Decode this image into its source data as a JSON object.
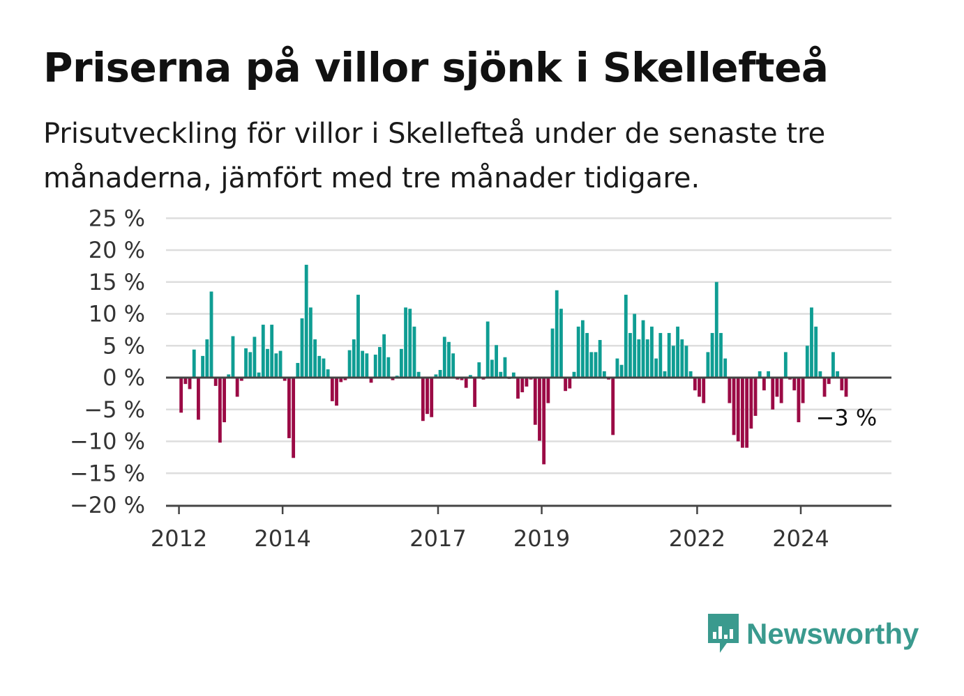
{
  "title": "Priserna på villor sjönk i Skellefteå",
  "subtitle": "Prisutveckling för villor i Skellefteå under de senaste tre månaderna, jämfört med tre månader tidigare.",
  "brand": {
    "name": "Newsworthy",
    "icon": "chart-speech-bubble-icon",
    "color": "#3a9a8e"
  },
  "colors": {
    "positive": "#0f9d93",
    "negative": "#9b0a45",
    "grid": "#dddddd",
    "axis": "#444444"
  },
  "chart_data": {
    "type": "bar",
    "y_ticks": [
      25,
      20,
      15,
      10,
      5,
      0,
      -5,
      -10,
      -15,
      -20
    ],
    "y_tick_labels": [
      "25 %",
      "20 %",
      "15 %",
      "10 %",
      "5 %",
      "0 %",
      "−5 %",
      "−10 %",
      "−15 %",
      "−20 %"
    ],
    "ylim": [
      -20,
      25
    ],
    "x_start": "2011-10",
    "x_end": "2025-10",
    "x_ticks": [
      {
        "label": "2012",
        "date": "2012-01"
      },
      {
        "label": "2014",
        "date": "2014-01"
      },
      {
        "label": "2017",
        "date": "2017-01"
      },
      {
        "label": "2019",
        "date": "2019-01"
      },
      {
        "label": "2022",
        "date": "2022-01"
      },
      {
        "label": "2024",
        "date": "2024-01"
      }
    ],
    "annotation": {
      "text": "−3 %",
      "date": "2024-09",
      "value": -3
    },
    "series": [
      {
        "values": [
          {
            "date": "2012-01",
            "value": -5.5
          },
          {
            "date": "2012-02",
            "value": -1
          },
          {
            "date": "2012-03",
            "value": -1.8
          },
          {
            "date": "2012-04",
            "value": 4.4
          },
          {
            "date": "2012-05",
            "value": -6.6
          },
          {
            "date": "2012-06",
            "value": 3.4
          },
          {
            "date": "2012-07",
            "value": 6
          },
          {
            "date": "2012-08",
            "value": 13.5
          },
          {
            "date": "2012-09",
            "value": -1.3
          },
          {
            "date": "2012-10",
            "value": -10.2
          },
          {
            "date": "2012-11",
            "value": -7
          },
          {
            "date": "2012-12",
            "value": 0.5
          },
          {
            "date": "2013-01",
            "value": 6.5
          },
          {
            "date": "2013-02",
            "value": -3
          },
          {
            "date": "2013-03",
            "value": -0.5
          },
          {
            "date": "2013-04",
            "value": 4.6
          },
          {
            "date": "2013-05",
            "value": 4
          },
          {
            "date": "2013-06",
            "value": 6.4
          },
          {
            "date": "2013-07",
            "value": 0.8
          },
          {
            "date": "2013-08",
            "value": 8.3
          },
          {
            "date": "2013-09",
            "value": 4.5
          },
          {
            "date": "2013-10",
            "value": 8.3
          },
          {
            "date": "2013-11",
            "value": 3.8
          },
          {
            "date": "2013-12",
            "value": 4.2
          },
          {
            "date": "2014-01",
            "value": -0.5
          },
          {
            "date": "2014-02",
            "value": -9.5
          },
          {
            "date": "2014-03",
            "value": -12.6
          },
          {
            "date": "2014-04",
            "value": 2.3
          },
          {
            "date": "2014-05",
            "value": 9.3
          },
          {
            "date": "2014-06",
            "value": 17.7
          },
          {
            "date": "2014-07",
            "value": 11
          },
          {
            "date": "2014-08",
            "value": 6
          },
          {
            "date": "2014-09",
            "value": 3.4
          },
          {
            "date": "2014-10",
            "value": 3
          },
          {
            "date": "2014-11",
            "value": 1.3
          },
          {
            "date": "2014-12",
            "value": -3.7
          },
          {
            "date": "2015-01",
            "value": -4.4
          },
          {
            "date": "2015-02",
            "value": -0.7
          },
          {
            "date": "2015-03",
            "value": -0.4
          },
          {
            "date": "2015-04",
            "value": 4.3
          },
          {
            "date": "2015-05",
            "value": 6
          },
          {
            "date": "2015-06",
            "value": 13
          },
          {
            "date": "2015-07",
            "value": 4.2
          },
          {
            "date": "2015-08",
            "value": 3.8
          },
          {
            "date": "2015-09",
            "value": -0.8
          },
          {
            "date": "2015-10",
            "value": 3.6
          },
          {
            "date": "2015-11",
            "value": 4.8
          },
          {
            "date": "2015-12",
            "value": 6.8
          },
          {
            "date": "2016-01",
            "value": 3.2
          },
          {
            "date": "2016-02",
            "value": -0.4
          },
          {
            "date": "2016-03",
            "value": 0.3
          },
          {
            "date": "2016-04",
            "value": 4.5
          },
          {
            "date": "2016-05",
            "value": 11
          },
          {
            "date": "2016-06",
            "value": 10.8
          },
          {
            "date": "2016-07",
            "value": 8
          },
          {
            "date": "2016-08",
            "value": 0.9
          },
          {
            "date": "2016-09",
            "value": -6.8
          },
          {
            "date": "2016-10",
            "value": -5.7
          },
          {
            "date": "2016-11",
            "value": -6.2
          },
          {
            "date": "2016-12",
            "value": 0.5
          },
          {
            "date": "2017-01",
            "value": 1.2
          },
          {
            "date": "2017-02",
            "value": 6.4
          },
          {
            "date": "2017-03",
            "value": 5.6
          },
          {
            "date": "2017-04",
            "value": 3.8
          },
          {
            "date": "2017-05",
            "value": -0.3
          },
          {
            "date": "2017-06",
            "value": -0.4
          },
          {
            "date": "2017-07",
            "value": -1.6
          },
          {
            "date": "2017-08",
            "value": 0.4
          },
          {
            "date": "2017-09",
            "value": -4.6
          },
          {
            "date": "2017-10",
            "value": 2.4
          },
          {
            "date": "2017-11",
            "value": -0.3
          },
          {
            "date": "2017-12",
            "value": 8.8
          },
          {
            "date": "2018-01",
            "value": 2.8
          },
          {
            "date": "2018-02",
            "value": 5.1
          },
          {
            "date": "2018-03",
            "value": 0.9
          },
          {
            "date": "2018-04",
            "value": 3.2
          },
          {
            "date": "2018-05",
            "value": -0.2
          },
          {
            "date": "2018-06",
            "value": 0.8
          },
          {
            "date": "2018-07",
            "value": -3.3
          },
          {
            "date": "2018-08",
            "value": -2.3
          },
          {
            "date": "2018-09",
            "value": -1.4
          },
          {
            "date": "2018-10",
            "value": -0.3
          },
          {
            "date": "2018-11",
            "value": -7.4
          },
          {
            "date": "2018-12",
            "value": -9.9
          },
          {
            "date": "2019-01",
            "value": -13.6
          },
          {
            "date": "2019-02",
            "value": -4
          },
          {
            "date": "2019-03",
            "value": 7.7
          },
          {
            "date": "2019-04",
            "value": 13.7
          },
          {
            "date": "2019-05",
            "value": 10.8
          },
          {
            "date": "2019-06",
            "value": -2.1
          },
          {
            "date": "2019-07",
            "value": -1.7
          },
          {
            "date": "2019-08",
            "value": 0.9
          },
          {
            "date": "2019-09",
            "value": 8
          },
          {
            "date": "2019-10",
            "value": 9
          },
          {
            "date": "2019-11",
            "value": 7
          },
          {
            "date": "2019-12",
            "value": 4
          },
          {
            "date": "2020-01",
            "value": 4
          },
          {
            "date": "2020-02",
            "value": 5.9
          },
          {
            "date": "2020-03",
            "value": 1
          },
          {
            "date": "2020-04",
            "value": -0.3
          },
          {
            "date": "2020-05",
            "value": -9
          },
          {
            "date": "2020-06",
            "value": 3
          },
          {
            "date": "2020-07",
            "value": 2
          },
          {
            "date": "2020-08",
            "value": 13
          },
          {
            "date": "2020-09",
            "value": 7
          },
          {
            "date": "2020-10",
            "value": 10
          },
          {
            "date": "2020-11",
            "value": 6
          },
          {
            "date": "2020-12",
            "value": 9
          },
          {
            "date": "2021-01",
            "value": 6
          },
          {
            "date": "2021-02",
            "value": 8
          },
          {
            "date": "2021-03",
            "value": 3
          },
          {
            "date": "2021-04",
            "value": 7
          },
          {
            "date": "2021-05",
            "value": 1
          },
          {
            "date": "2021-06",
            "value": 7
          },
          {
            "date": "2021-07",
            "value": 5
          },
          {
            "date": "2021-08",
            "value": 8
          },
          {
            "date": "2021-09",
            "value": 6
          },
          {
            "date": "2021-10",
            "value": 5
          },
          {
            "date": "2021-11",
            "value": 1
          },
          {
            "date": "2021-12",
            "value": -2
          },
          {
            "date": "2022-01",
            "value": -3
          },
          {
            "date": "2022-02",
            "value": -4
          },
          {
            "date": "2022-03",
            "value": 4
          },
          {
            "date": "2022-04",
            "value": 7
          },
          {
            "date": "2022-05",
            "value": 15
          },
          {
            "date": "2022-06",
            "value": 7
          },
          {
            "date": "2022-07",
            "value": 3
          },
          {
            "date": "2022-08",
            "value": -4
          },
          {
            "date": "2022-09",
            "value": -9
          },
          {
            "date": "2022-10",
            "value": -10
          },
          {
            "date": "2022-11",
            "value": -11
          },
          {
            "date": "2022-12",
            "value": -11
          },
          {
            "date": "2023-01",
            "value": -8
          },
          {
            "date": "2023-02",
            "value": -6
          },
          {
            "date": "2023-03",
            "value": 1
          },
          {
            "date": "2023-04",
            "value": -2
          },
          {
            "date": "2023-05",
            "value": 1
          },
          {
            "date": "2023-06",
            "value": -5
          },
          {
            "date": "2023-07",
            "value": -3
          },
          {
            "date": "2023-08",
            "value": -4
          },
          {
            "date": "2023-09",
            "value": 4
          },
          {
            "date": "2023-10",
            "value": -0.3
          },
          {
            "date": "2023-11",
            "value": -2
          },
          {
            "date": "2023-12",
            "value": -7
          },
          {
            "date": "2024-01",
            "value": -4
          },
          {
            "date": "2024-02",
            "value": 5
          },
          {
            "date": "2024-03",
            "value": 11
          },
          {
            "date": "2024-04",
            "value": 8
          },
          {
            "date": "2024-05",
            "value": 1
          },
          {
            "date": "2024-06",
            "value": -3
          },
          {
            "date": "2024-07",
            "value": -1
          },
          {
            "date": "2024-08",
            "value": 4
          },
          {
            "date": "2024-09",
            "value": 1
          },
          {
            "date": "2024-10",
            "value": -2
          },
          {
            "date": "2024-11",
            "value": -3
          }
        ]
      }
    ]
  }
}
